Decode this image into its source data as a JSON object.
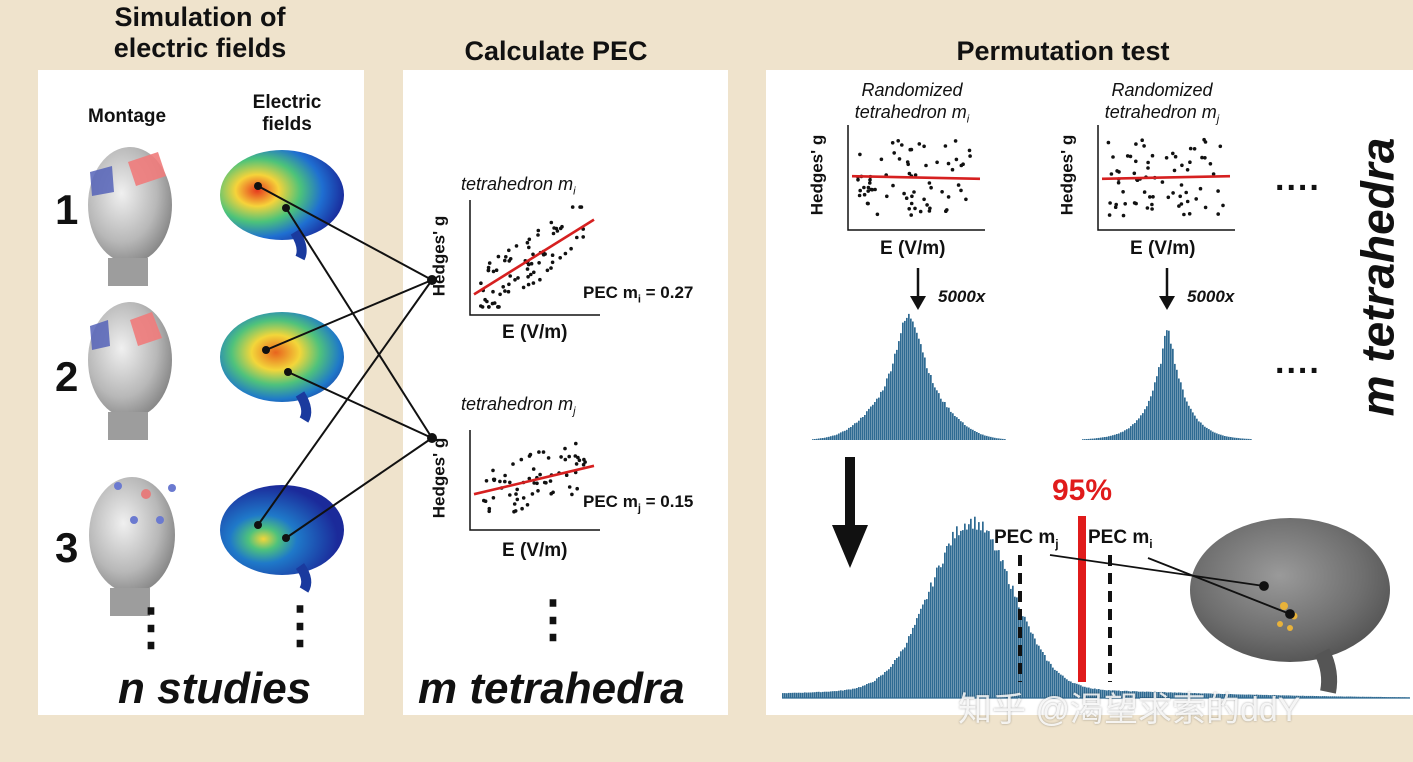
{
  "colors": {
    "background": "#efe3cc",
    "panel": "#ffffff",
    "regression": "#d62020",
    "histogram": "#2e6a92",
    "threshold": "#e01b1b"
  },
  "col1": {
    "title_line1": "Simulation of",
    "title_line2": "electric fields",
    "montage_label": "Montage",
    "efield_label_line1": "Electric",
    "efield_label_line2": "fields",
    "study_numbers": [
      "1",
      "2",
      "3"
    ],
    "ellipsis": "⋮",
    "footer": "n studies"
  },
  "col2": {
    "title": "Calculate PEC",
    "plot_i": {
      "title": "tetrahedron m",
      "sub": "i",
      "ylabel": "Hedges' g",
      "xlabel": "E (V/m)",
      "pec_label": "PEC",
      "pec_m": "m",
      "pec_sub": "i",
      "pec_value": "= 0.27"
    },
    "plot_j": {
      "title": "tetrahedron m",
      "sub": "j",
      "ylabel": "Hedges' g",
      "xlabel": "E (V/m)",
      "pec_label": "PEC",
      "pec_m": "m",
      "pec_sub": "j",
      "pec_value": "= 0.15"
    },
    "ellipsis": "⋮",
    "footer": "m tetrahedra"
  },
  "col3": {
    "title": "Permutation test",
    "rand_i": {
      "line1": "Randomized",
      "line2": "tetrahedron m",
      "sub": "i",
      "ylabel": "Hedges' g",
      "xlabel": "E (V/m)",
      "count": "5000x"
    },
    "rand_j": {
      "line1": "Randomized",
      "line2": "tetrahedron m",
      "sub": "j",
      "ylabel": "Hedges' g",
      "xlabel": "E (V/m)",
      "count": "5000x"
    },
    "dots": "....",
    "side_label": "m tetrahedra",
    "threshold": "95%",
    "pec_j_label": "PEC",
    "pec_j_m": "m",
    "pec_j_sub": "j",
    "pec_i_label": "PEC",
    "pec_i_m": "m",
    "pec_i_sub": "i"
  },
  "watermark": "知乎 @渴望求索的ddY",
  "icons": [
    "head-montage-icon",
    "brain-efield-icon",
    "brain-gray-icon",
    "down-arrow-icon"
  ]
}
